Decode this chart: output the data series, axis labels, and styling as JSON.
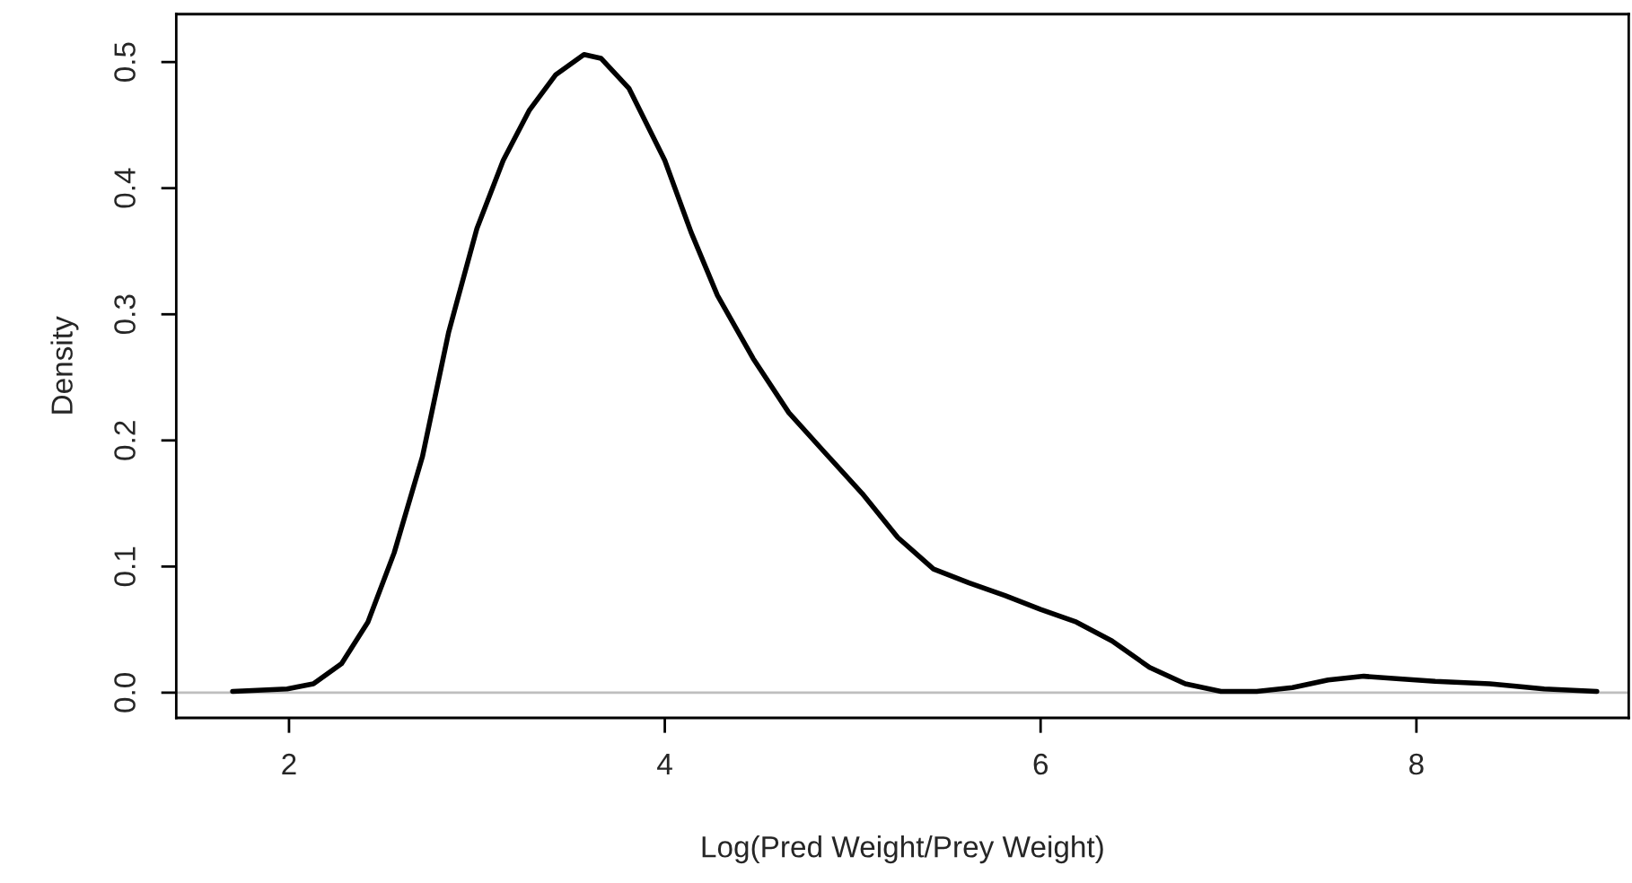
{
  "chart_data": {
    "type": "line",
    "xlabel": "Log(Pred Weight/Prey Weight)",
    "ylabel": "Density",
    "xlim": [
      1.4,
      9.13
    ],
    "ylim": [
      -0.02,
      0.538
    ],
    "xticks": [
      2,
      4,
      6,
      8
    ],
    "yticks": [
      {
        "value": 0,
        "label": "0.0"
      },
      0.1,
      0.2,
      0.3,
      0.4,
      0.5
    ],
    "grid": false,
    "legend": false,
    "marker": "none",
    "line_style": "solid",
    "ref_lines": [
      {
        "axis": "y",
        "value": 0,
        "color": "#bebebe"
      }
    ],
    "series": [
      {
        "color": "#000000",
        "x": [
          1.7,
          1.99,
          2.13,
          2.28,
          2.42,
          2.56,
          2.71,
          2.85,
          3.0,
          3.14,
          3.28,
          3.42,
          3.57,
          3.66,
          3.81,
          4.0,
          4.14,
          4.28,
          4.47,
          4.66,
          4.86,
          5.05,
          5.24,
          5.43,
          5.62,
          5.81,
          6.0,
          6.19,
          6.38,
          6.58,
          6.77,
          6.96,
          7.15,
          7.34,
          7.53,
          7.72,
          7.91,
          8.1,
          8.39,
          8.68,
          8.96
        ],
        "values": [
          0.001,
          0.003,
          0.007,
          0.023,
          0.056,
          0.111,
          0.187,
          0.286,
          0.368,
          0.422,
          0.462,
          0.49,
          0.506,
          0.503,
          0.479,
          0.422,
          0.365,
          0.315,
          0.265,
          0.222,
          0.189,
          0.158,
          0.123,
          0.098,
          0.087,
          0.077,
          0.066,
          0.056,
          0.041,
          0.02,
          0.007,
          0.001,
          0.001,
          0.004,
          0.01,
          0.013,
          0.011,
          0.009,
          0.007,
          0.003,
          0.001
        ]
      }
    ]
  }
}
